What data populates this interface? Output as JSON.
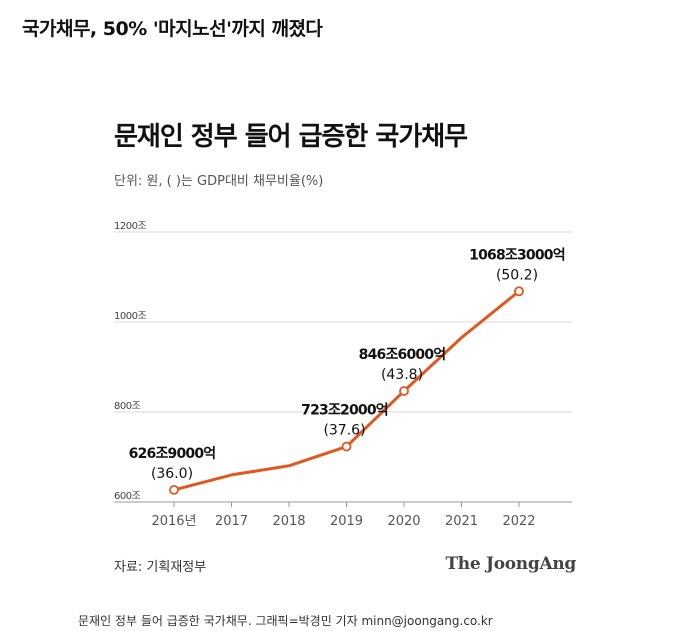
{
  "headline": "국가채무, 50% '마지노선'까지 깨졌다",
  "brand": "The JoongAng",
  "caption": "문재인 정부 들어 급증한 국가채무. 그래픽=박경민 기자 minn@joongang.co.kr",
  "chart_data": {
    "type": "line",
    "title": "문재인 정부 들어 급증한 국가채무",
    "subtitle": "단위: 원, ( )는 GDP대비 채무비율(%)",
    "source": "자료: 기획재정부",
    "x": [
      "2016년",
      "2017",
      "2018",
      "2019",
      "2020",
      "2021",
      "2022"
    ],
    "values": [
      626.9,
      660.2,
      680.5,
      723.2,
      846.6,
      965.3,
      1068.3
    ],
    "y_ticks": [
      {
        "value": 600,
        "label": "600조"
      },
      {
        "value": 800,
        "label": "800조"
      },
      {
        "value": 1000,
        "label": "1000조"
      },
      {
        "value": 1200,
        "label": "1200조"
      }
    ],
    "ylim": [
      600,
      1200
    ],
    "grid": true,
    "line_color": "#e0581e",
    "annotations": [
      {
        "index": 0,
        "amount": "626조9000억",
        "ratio": "(36.0)"
      },
      {
        "index": 3,
        "amount": "723조2000억",
        "ratio": "(37.6)"
      },
      {
        "index": 4,
        "amount": "846조6000억",
        "ratio": "(43.8)"
      },
      {
        "index": 6,
        "amount": "1068조3000억",
        "ratio": "(50.2)"
      }
    ]
  }
}
